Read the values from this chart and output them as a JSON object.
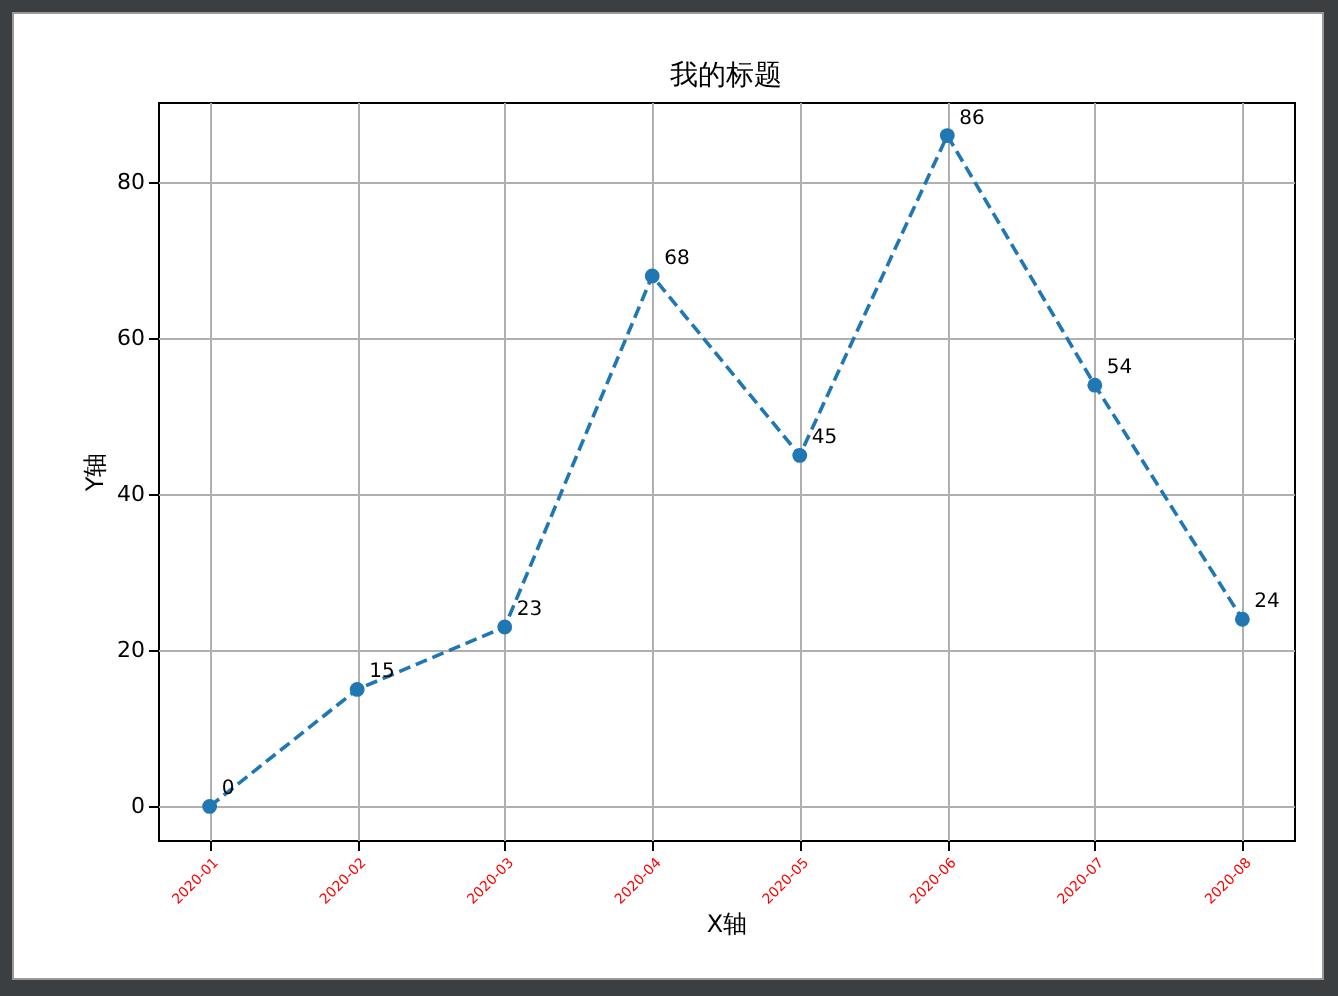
{
  "chart_data": {
    "type": "line",
    "title": "我的标题",
    "xlabel": "X轴",
    "ylabel": "Y轴",
    "categories": [
      "2020-01",
      "2020-02",
      "2020-03",
      "2020-04",
      "2020-05",
      "2020-06",
      "2020-07",
      "2020-08"
    ],
    "series": [
      {
        "color": "#1f77b4",
        "values": [
          0,
          15,
          23,
          68,
          45,
          86,
          54,
          24
        ]
      }
    ],
    "ylim": [
      -4.3,
      90.3
    ],
    "yticks": [
      0,
      20,
      40,
      60,
      80
    ],
    "grid": true,
    "marker": "circle",
    "line_style": "dashed",
    "data_labels": true
  }
}
